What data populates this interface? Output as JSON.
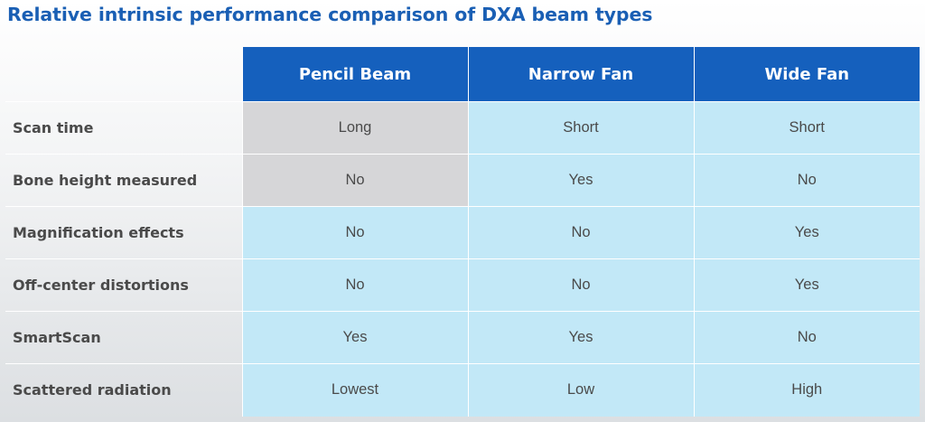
{
  "title": "Relative intrinsic performance comparison of DXA beam types",
  "columns": [
    "Pencil Beam",
    "Narrow Fan",
    "Wide Fan"
  ],
  "rows": [
    {
      "label": "Scan time",
      "values": [
        "Long",
        "Short",
        "Short"
      ],
      "shading": [
        "gray",
        "light",
        "light"
      ]
    },
    {
      "label": "Bone height measured",
      "values": [
        "No",
        "Yes",
        "No"
      ],
      "shading": [
        "gray",
        "light",
        "light"
      ]
    },
    {
      "label": "Magnification effects",
      "values": [
        "No",
        "No",
        "Yes"
      ],
      "shading": [
        "light",
        "light",
        "light"
      ]
    },
    {
      "label": "Off-center distortions",
      "values": [
        "No",
        "No",
        "Yes"
      ],
      "shading": [
        "light",
        "light",
        "light"
      ]
    },
    {
      "label": "SmartScan",
      "values": [
        "Yes",
        "Yes",
        "No"
      ],
      "shading": [
        "light",
        "light",
        "light"
      ]
    },
    {
      "label": "Scattered radiation",
      "values": [
        "Lowest",
        "Low",
        "High"
      ],
      "shading": [
        "light",
        "light",
        "light"
      ]
    }
  ],
  "colors": {
    "title": "#1a5fb4",
    "header_bg": "#1560bd",
    "header_text": "#ffffff",
    "cell_light": "#c2e8f7",
    "cell_gray": "#d6d6d8",
    "body_text": "#4a4a4a"
  }
}
